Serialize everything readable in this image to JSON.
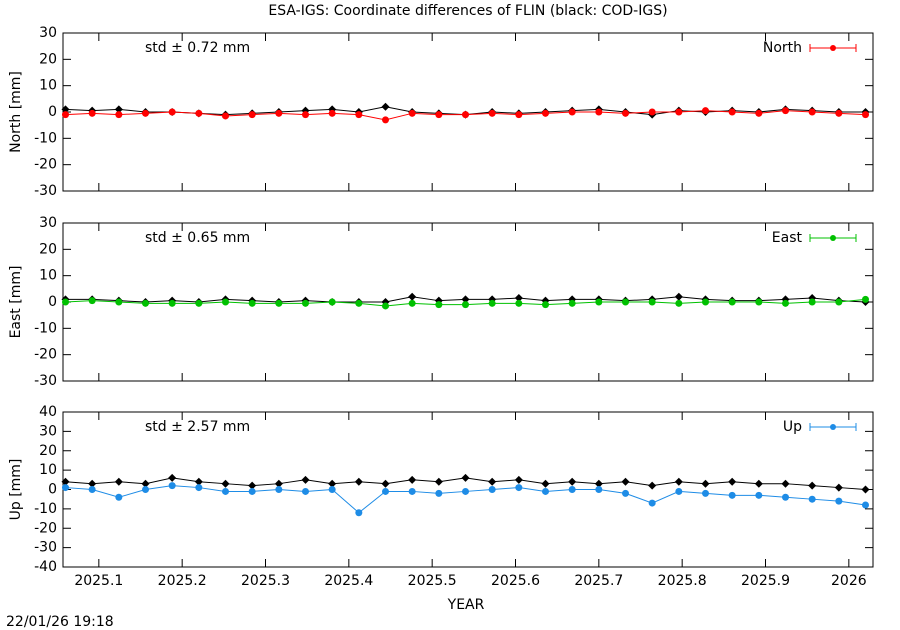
{
  "timestamp": "22/01/26 19:18",
  "chart_data": [
    {
      "type": "scatter",
      "title": "ESA-IGS: Coordinate differences of FLIN (black: COD-IGS)",
      "ylabel": "North [mm]",
      "annotation": "std ± 0.72 mm",
      "legend": "upper right",
      "x": [
        2025.06,
        2025.092,
        2025.124,
        2025.156,
        2025.188,
        2025.22,
        2025.252,
        2025.284,
        2025.316,
        2025.348,
        2025.38,
        2025.412,
        2025.444,
        2025.476,
        2025.508,
        2025.54,
        2025.572,
        2025.604,
        2025.636,
        2025.668,
        2025.7,
        2025.732,
        2025.764,
        2025.796,
        2025.828,
        2025.86,
        2025.892,
        2025.924,
        2025.956,
        2025.988,
        2026.02
      ],
      "series": [
        {
          "color": "#000000",
          "values": [
            1,
            0.5,
            1,
            0,
            0,
            -0.5,
            -1,
            -0.5,
            0,
            0.5,
            1,
            0,
            2,
            0,
            -0.5,
            -1,
            0,
            -0.5,
            0,
            0.5,
            1,
            0,
            -1,
            0.5,
            0,
            0.5,
            0,
            1,
            0.5,
            0,
            0
          ]
        },
        {
          "name": "North",
          "color": "#ff0000",
          "values": [
            -1,
            -0.5,
            -1,
            -0.5,
            0,
            -0.5,
            -1.5,
            -1,
            -0.5,
            -1,
            -0.5,
            -1,
            -3,
            -0.5,
            -1,
            -1,
            -0.5,
            -1,
            -0.5,
            0,
            0,
            -0.5,
            0,
            0,
            0.5,
            0,
            -0.5,
            0.5,
            0,
            -0.5,
            -1
          ]
        }
      ],
      "xlim": [
        2025.057,
        2026.029
      ],
      "xticks": [
        2025.1,
        2025.2,
        2025.3,
        2025.4,
        2025.5,
        2025.6,
        2025.7,
        2025.8,
        2025.9,
        2026
      ],
      "ylim": [
        -30,
        30
      ],
      "yticks": [
        -30,
        -20,
        -10,
        0,
        10,
        20,
        30
      ]
    },
    {
      "type": "scatter",
      "ylabel": "East [mm]",
      "annotation": "std ± 0.65 mm",
      "legend": "upper right",
      "x": [
        2025.06,
        2025.092,
        2025.124,
        2025.156,
        2025.188,
        2025.22,
        2025.252,
        2025.284,
        2025.316,
        2025.348,
        2025.38,
        2025.412,
        2025.444,
        2025.476,
        2025.508,
        2025.54,
        2025.572,
        2025.604,
        2025.636,
        2025.668,
        2025.7,
        2025.732,
        2025.764,
        2025.796,
        2025.828,
        2025.86,
        2025.892,
        2025.924,
        2025.956,
        2025.988,
        2026.02
      ],
      "series": [
        {
          "color": "#000000",
          "values": [
            1,
            1,
            0.5,
            0,
            0.5,
            0,
            1,
            0.5,
            0,
            0.5,
            0,
            0,
            0,
            2,
            0.5,
            1,
            1,
            1.5,
            0.5,
            1,
            1,
            0.5,
            1,
            2,
            1,
            0.5,
            0.5,
            1,
            1.5,
            0.5,
            0
          ]
        },
        {
          "name": "East",
          "color": "#00c000",
          "values": [
            0,
            0.5,
            0,
            -0.5,
            -0.5,
            -0.5,
            0,
            -0.5,
            -0.5,
            -0.5,
            0,
            -0.5,
            -1.5,
            -0.5,
            -1,
            -1,
            -0.5,
            -0.5,
            -1,
            -0.5,
            0,
            0,
            0,
            -0.5,
            0,
            0,
            0,
            -0.5,
            0,
            0,
            1
          ]
        }
      ],
      "xlim": [
        2025.057,
        2026.029
      ],
      "xticks": [
        2025.1,
        2025.2,
        2025.3,
        2025.4,
        2025.5,
        2025.6,
        2025.7,
        2025.8,
        2025.9,
        2026
      ],
      "ylim": [
        -30,
        30
      ],
      "yticks": [
        -30,
        -20,
        -10,
        0,
        10,
        20,
        30
      ]
    },
    {
      "type": "scatter",
      "ylabel": "Up [mm]",
      "xlabel": "YEAR",
      "annotation": "std ± 2.57 mm",
      "legend": "upper right",
      "x": [
        2025.06,
        2025.092,
        2025.124,
        2025.156,
        2025.188,
        2025.22,
        2025.252,
        2025.284,
        2025.316,
        2025.348,
        2025.38,
        2025.412,
        2025.444,
        2025.476,
        2025.508,
        2025.54,
        2025.572,
        2025.604,
        2025.636,
        2025.668,
        2025.7,
        2025.732,
        2025.764,
        2025.796,
        2025.828,
        2025.86,
        2025.892,
        2025.924,
        2025.956,
        2025.988,
        2026.02
      ],
      "series": [
        {
          "color": "#000000",
          "values": [
            4,
            3,
            4,
            3,
            6,
            4,
            3,
            2,
            3,
            5,
            3,
            4,
            3,
            5,
            4,
            6,
            4,
            5,
            3,
            4,
            3,
            4,
            2,
            4,
            3,
            4,
            3,
            3,
            2,
            1,
            0
          ]
        },
        {
          "name": "Up",
          "color": "#1e8ce6",
          "values": [
            1,
            0,
            -4,
            0,
            2,
            1,
            -1,
            -1,
            0,
            -1,
            0,
            -12,
            -1,
            -1,
            -2,
            -1,
            0,
            1,
            -1,
            0,
            0,
            -2,
            -7,
            -1,
            -2,
            -3,
            -3,
            -4,
            -5,
            -6,
            -8
          ]
        }
      ],
      "xlim": [
        2025.057,
        2026.029
      ],
      "xticks": [
        2025.1,
        2025.2,
        2025.3,
        2025.4,
        2025.5,
        2025.6,
        2025.7,
        2025.8,
        2025.9,
        2026
      ],
      "ylim": [
        -40,
        40
      ],
      "yticks": [
        -40,
        -30,
        -20,
        -10,
        0,
        10,
        20,
        30,
        40
      ]
    }
  ]
}
